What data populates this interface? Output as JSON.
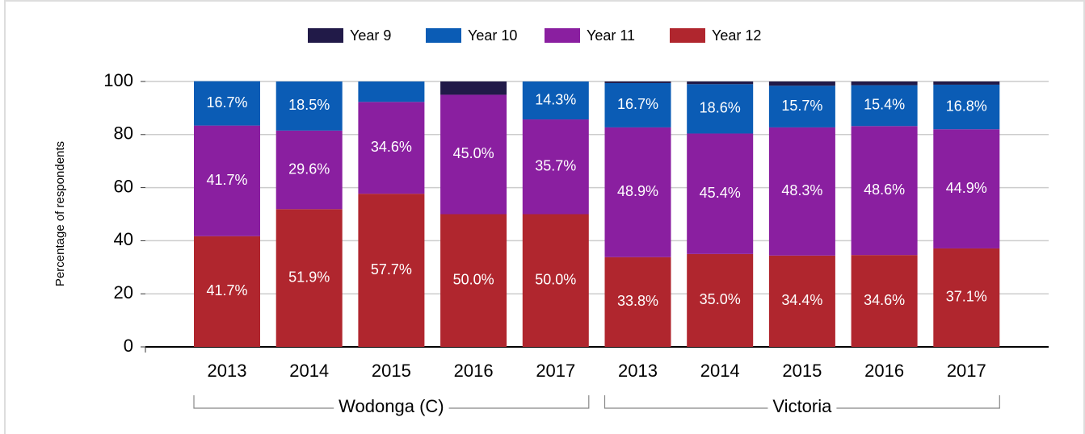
{
  "chart_data": {
    "type": "bar",
    "stacked": true,
    "y_label": "Percentage of respondents",
    "groups": [
      {
        "label": "Wodonga (C)",
        "categories": [
          "2013",
          "2014",
          "2015",
          "2016",
          "2017"
        ]
      },
      {
        "label": "Victoria",
        "categories": [
          "2013",
          "2014",
          "2015",
          "2016",
          "2017"
        ]
      }
    ],
    "series": [
      {
        "name": "Year 12",
        "color": "#b0262e",
        "values": [
          41.7,
          51.9,
          57.7,
          50.0,
          50.0,
          33.8,
          35.0,
          34.4,
          34.6,
          37.1
        ],
        "value_labels": [
          "41.7%",
          "51.9%",
          "57.7%",
          "50.0%",
          "50.0%",
          "33.8%",
          "35.0%",
          "34.4%",
          "34.6%",
          "37.1%"
        ]
      },
      {
        "name": "Year 11",
        "color": "#8a1fa0",
        "values": [
          41.7,
          29.6,
          34.6,
          45.0,
          35.7,
          48.9,
          45.4,
          48.3,
          48.6,
          44.9
        ],
        "value_labels": [
          "41.7%",
          "29.6%",
          "34.6%",
          "45.0%",
          "35.7%",
          "48.9%",
          "45.4%",
          "48.3%",
          "48.6%",
          "44.9%"
        ]
      },
      {
        "name": "Year 10",
        "color": "#0b5cb5",
        "values": [
          16.7,
          18.5,
          7.7,
          0,
          14.3,
          16.7,
          18.6,
          15.7,
          15.4,
          16.8
        ],
        "value_labels": [
          "16.7%",
          "18.5%",
          null,
          null,
          "14.3%",
          "16.7%",
          "18.6%",
          "15.7%",
          "15.4%",
          "16.8%"
        ]
      },
      {
        "name": "Year 9",
        "color": "#211a48",
        "values": [
          0,
          0,
          0,
          5.0,
          0,
          0.6,
          1.0,
          1.6,
          1.4,
          1.2
        ]
      }
    ],
    "legend_order": [
      3,
      2,
      1,
      0
    ],
    "ylim": [
      0,
      100
    ],
    "yticks": [
      0,
      20,
      40,
      60,
      80,
      100
    ],
    "grid": true,
    "legend": "top"
  }
}
